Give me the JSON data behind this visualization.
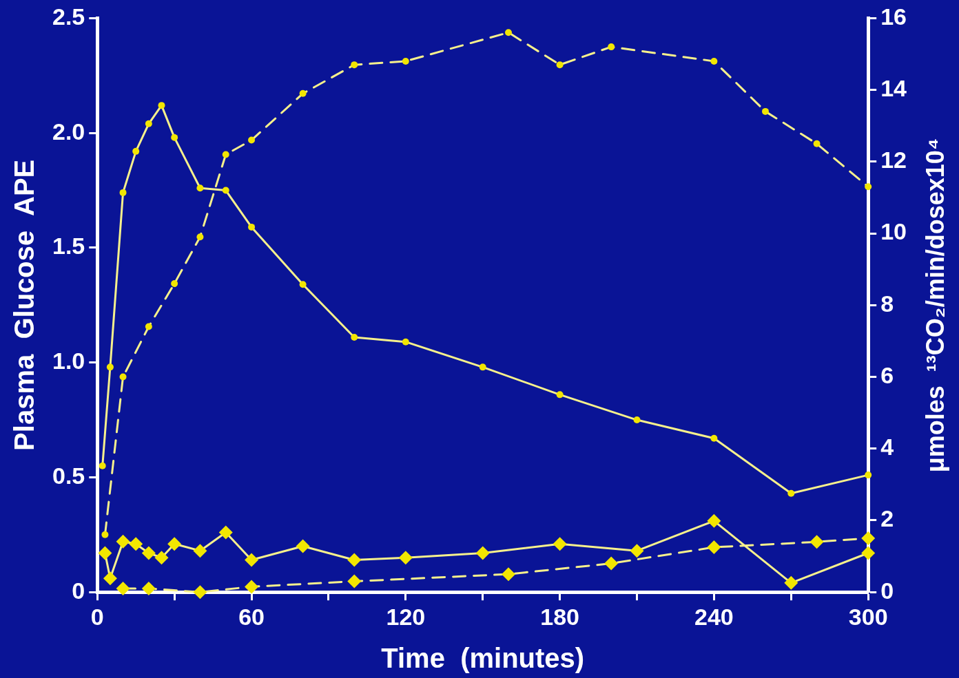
{
  "chart_data": {
    "type": "line",
    "xlabel": "Time  (minutes)",
    "ylabel": "Plasma  Glucose  APE",
    "y2label": "μmoles  ¹³CO₂/min/dosex10⁴",
    "xlim": [
      0,
      300
    ],
    "xticks": [
      0,
      {
        "value": 30,
        "label": null
      },
      60,
      {
        "value": 90,
        "label": null
      },
      120,
      {
        "value": 150,
        "label": null
      },
      180,
      {
        "value": 210,
        "label": null
      },
      240,
      {
        "value": 270,
        "label": null
      },
      300
    ],
    "ylim": [
      0,
      2.5
    ],
    "yticks": [
      0,
      0.5,
      {
        "value": 1,
        "label": "1.0"
      },
      1.5,
      {
        "value": 2,
        "label": "2.0"
      },
      2.5
    ],
    "y2lim": [
      0,
      16
    ],
    "y2ticks": [
      0,
      2,
      4,
      6,
      8,
      10,
      12,
      14,
      16
    ],
    "grid": false,
    "legend": false,
    "series": [
      {
        "color": "#f6f08c",
        "axis": "y",
        "marker": "circle",
        "line_style": "solid",
        "x": [
          2,
          5,
          10,
          15,
          20,
          25,
          30,
          40,
          50,
          60,
          80,
          100,
          120,
          150,
          180,
          210,
          240,
          270,
          300
        ],
        "values": [
          0.55,
          0.98,
          1.74,
          1.92,
          2.04,
          2.12,
          1.98,
          1.76,
          1.75,
          1.59,
          1.34,
          1.11,
          1.09,
          0.98,
          0.86,
          0.75,
          0.67,
          0.43,
          0.51
        ]
      },
      {
        "color": "#f6f08c",
        "axis": "y2",
        "marker": "circle",
        "line_style": "dashed",
        "x": [
          3,
          10,
          20,
          30,
          40,
          50,
          60,
          80,
          100,
          120,
          160,
          180,
          200,
          240,
          260,
          280,
          300
        ],
        "values": [
          1.6,
          6.0,
          7.4,
          8.6,
          9.9,
          12.2,
          12.6,
          13.9,
          14.7,
          14.8,
          15.6,
          14.7,
          15.2,
          14.8,
          13.4,
          12.5,
          11.3
        ]
      },
      {
        "color": "#f6f08c",
        "axis": "y",
        "marker": "diamond",
        "line_style": "solid",
        "x": [
          3,
          5,
          10,
          15,
          20,
          25,
          30,
          40,
          50,
          60,
          80,
          100,
          120,
          150,
          180,
          210,
          240,
          270,
          300
        ],
        "values": [
          0.17,
          0.06,
          0.22,
          0.21,
          0.17,
          0.15,
          0.21,
          0.18,
          0.26,
          0.14,
          0.2,
          0.14,
          0.15,
          0.17,
          0.21,
          0.18,
          0.31,
          0.04,
          0.17
        ]
      },
      {
        "color": "#f6f08c",
        "axis": "y2",
        "marker": "diamond",
        "line_style": "dashed",
        "x": [
          10,
          20,
          40,
          60,
          100,
          160,
          200,
          240,
          280,
          300
        ],
        "values": [
          0.1,
          0.1,
          0,
          0.15,
          0.3,
          0.5,
          0.8,
          1.25,
          1.4,
          1.5
        ]
      }
    ]
  }
}
